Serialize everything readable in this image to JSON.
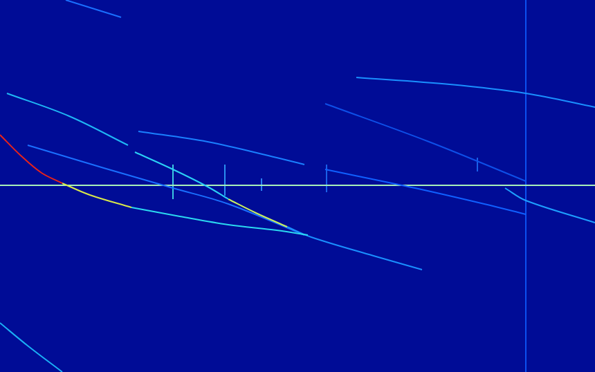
{
  "chart_data": {
    "type": "line",
    "tick_labels": false,
    "grid": false,
    "xlim": [
      0,
      860
    ],
    "ylim": [
      0,
      538
    ],
    "series": [
      {
        "color": "#e8231a",
        "x": [
          0,
          30,
          60,
          90
        ],
        "values": [
          343,
          313,
          288,
          273
        ]
      },
      {
        "color": "#d8e84a",
        "x": [
          90,
          130,
          190
        ],
        "values": [
          273,
          256,
          238
        ]
      },
      {
        "color": "#2bd9f0",
        "x": [
          190,
          260,
          330,
          400,
          445
        ],
        "values": [
          238,
          225,
          213,
          205,
          198
        ]
      },
      {
        "color": "#1fb8f5",
        "x": [
          10,
          100,
          185
        ],
        "values": [
          403,
          370,
          328
        ]
      },
      {
        "color": "#2bd0f5",
        "x": [
          195,
          250,
          300,
          330
        ],
        "values": [
          318,
          293,
          268,
          250
        ]
      },
      {
        "color": "#c8f060",
        "x": [
          330,
          370,
          415
        ],
        "values": [
          250,
          230,
          210
        ]
      },
      {
        "color": "#1a90ff",
        "x": [
          415,
          450,
          540,
          610
        ],
        "values": [
          210,
          195,
          168,
          148
        ]
      },
      {
        "color": "#1a70ff",
        "x": [
          40,
          150,
          250,
          330,
          440
        ],
        "values": [
          328,
          295,
          266,
          243,
          198
        ]
      },
      {
        "color": "#1a80ff",
        "x": [
          200,
          300,
          400,
          440
        ],
        "values": [
          348,
          333,
          310,
          300
        ]
      },
      {
        "color": "#1060ff",
        "x": [
          470,
          600,
          700,
          760
        ],
        "values": [
          293,
          266,
          243,
          228
        ]
      },
      {
        "color": "#1ea0ff",
        "x": [
          730,
          760,
          860
        ],
        "values": [
          266,
          248,
          216
        ]
      },
      {
        "color": "#1a90ff",
        "x": [
          515,
          650,
          760,
          860
        ],
        "values": [
          426,
          416,
          403,
          383
        ]
      },
      {
        "color": "#1ab0f5",
        "x": [
          0,
          40,
          90
        ],
        "values": [
          71,
          38,
          0
        ]
      },
      {
        "color": "#1a70ff",
        "x": [
          95,
          175
        ],
        "values": [
          538,
          513
        ]
      },
      {
        "color": "#0e50e8",
        "x": [
          470,
          620,
          760
        ],
        "values": [
          388,
          333,
          276
        ]
      },
      {
        "color": "#a8f0b8",
        "x": [
          0,
          860
        ],
        "values": [
          270,
          270
        ]
      },
      {
        "color": "#0c50f0",
        "x": [
          760,
          760
        ],
        "values": [
          0,
          538
        ]
      },
      {
        "color": "#40d0ff",
        "x": [
          760,
          760
        ],
        "values": [
          538,
          525
        ]
      },
      {
        "color": "#d82010",
        "x": [
          760,
          760
        ],
        "values": [
          282,
          258
        ]
      },
      {
        "color": "#3cc8e0",
        "x": [
          250,
          250
        ],
        "values": [
          300,
          250
        ]
      },
      {
        "color": "#2a90f0",
        "x": [
          325,
          325
        ],
        "values": [
          300,
          255
        ]
      },
      {
        "color": "#2a80f0",
        "x": [
          378,
          378
        ],
        "values": [
          280,
          262
        ]
      },
      {
        "color": "#1a60e8",
        "x": [
          472,
          472
        ],
        "values": [
          300,
          260
        ]
      },
      {
        "color": "#1a60e8",
        "x": [
          690,
          690
        ],
        "values": [
          310,
          290
        ]
      }
    ]
  }
}
